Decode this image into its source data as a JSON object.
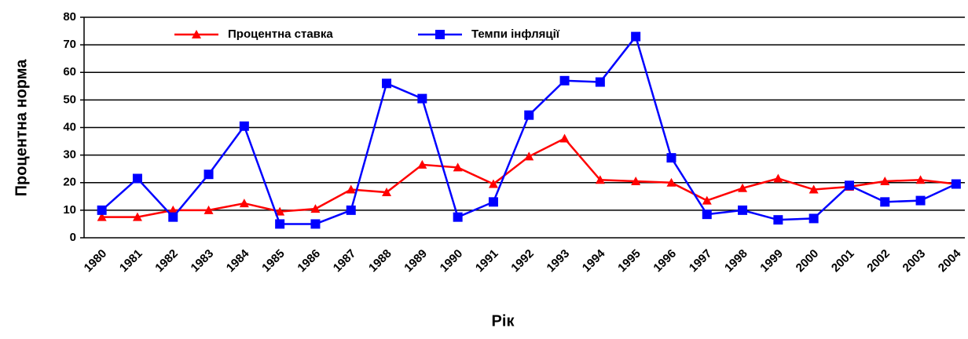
{
  "chart_data": {
    "type": "line",
    "y_label": "Процентна норма",
    "x_label": "Рік",
    "categories": [
      "1980",
      "1981",
      "1982",
      "1983",
      "1984",
      "1985",
      "1986",
      "1987",
      "1988",
      "1989",
      "1990",
      "1991",
      "1992",
      "1993",
      "1994",
      "1995",
      "1996",
      "1997",
      "1998",
      "1999",
      "2000",
      "2001",
      "2002",
      "2003",
      "2004"
    ],
    "series": [
      {
        "name": "Процентна ставка",
        "color": "#ff0000",
        "marker": "triangle",
        "values": [
          7.5,
          7.5,
          10,
          10,
          12.5,
          9.5,
          10.5,
          17.5,
          16.5,
          26.5,
          25.5,
          19.5,
          29.5,
          36,
          21,
          20.5,
          20,
          13.5,
          18,
          21.5,
          17.5,
          18.5,
          20.5,
          21,
          19.5
        ]
      },
      {
        "name": "Темпи інфляції",
        "color": "#0000ff",
        "marker": "square",
        "values": [
          10,
          21.5,
          7.5,
          23,
          40.5,
          5,
          5,
          10,
          56,
          50.5,
          7.5,
          13,
          44.5,
          57,
          56.5,
          73,
          29,
          8.5,
          10,
          6.5,
          7,
          19,
          13,
          13.5,
          19.5
        ]
      }
    ],
    "ylim": [
      0,
      80
    ],
    "yticks": [
      0,
      10,
      20,
      30,
      40,
      50,
      60,
      70,
      80
    ],
    "grid": true
  }
}
